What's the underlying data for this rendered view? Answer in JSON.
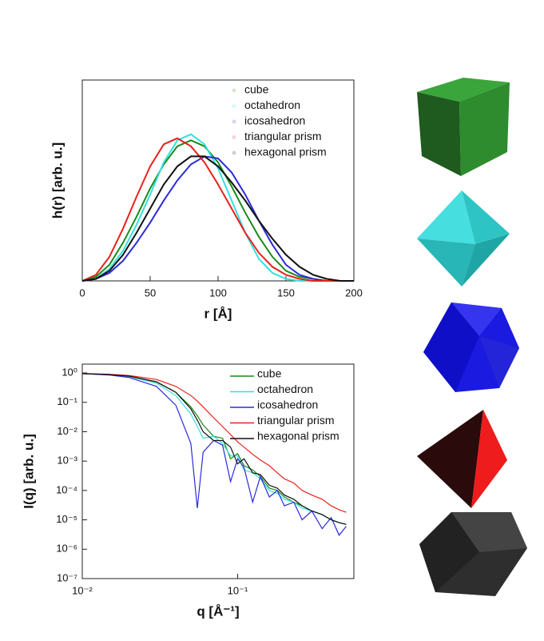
{
  "chart_data": [
    {
      "type": "line",
      "xlabel": "r [Å]",
      "ylabel": "h(r) [arb. u.]",
      "x": [
        0,
        10,
        20,
        30,
        40,
        50,
        60,
        70,
        80,
        90,
        100,
        110,
        120,
        130,
        140,
        150,
        160,
        170,
        180,
        190,
        200
      ],
      "xlim": [
        0,
        200
      ],
      "xticks": [
        0,
        50,
        100,
        150,
        200
      ],
      "ylim": [
        0,
        1
      ],
      "legend": "upper right",
      "series": [
        {
          "name": "cube",
          "color": "#1a8a1a",
          "values": [
            0,
            0.02,
            0.08,
            0.19,
            0.32,
            0.46,
            0.58,
            0.67,
            0.7,
            0.67,
            0.59,
            0.47,
            0.34,
            0.22,
            0.12,
            0.05,
            0.02,
            0.01,
            0,
            0,
            0
          ]
        },
        {
          "name": "octahedron",
          "color": "#33e0e0",
          "values": [
            0,
            0.01,
            0.06,
            0.15,
            0.28,
            0.43,
            0.59,
            0.7,
            0.73,
            0.68,
            0.56,
            0.4,
            0.24,
            0.11,
            0.04,
            0.01,
            0,
            0,
            0,
            0,
            0
          ]
        },
        {
          "name": "icosahedron",
          "color": "#2b2bd9",
          "values": [
            0,
            0.01,
            0.04,
            0.1,
            0.19,
            0.29,
            0.4,
            0.5,
            0.58,
            0.62,
            0.61,
            0.54,
            0.43,
            0.3,
            0.18,
            0.08,
            0.03,
            0.01,
            0,
            0,
            0
          ]
        },
        {
          "name": "triangular prism",
          "color": "#e8211c",
          "values": [
            0,
            0.03,
            0.12,
            0.26,
            0.42,
            0.57,
            0.68,
            0.71,
            0.67,
            0.59,
            0.48,
            0.36,
            0.24,
            0.14,
            0.07,
            0.03,
            0.01,
            0,
            0,
            0,
            0
          ]
        },
        {
          "name": "hexagonal prism",
          "color": "#111111",
          "values": [
            0,
            0.01,
            0.05,
            0.13,
            0.24,
            0.36,
            0.48,
            0.57,
            0.62,
            0.62,
            0.57,
            0.49,
            0.4,
            0.3,
            0.21,
            0.13,
            0.07,
            0.03,
            0.01,
            0,
            0
          ]
        }
      ]
    },
    {
      "type": "line",
      "xlabel": "q [Å⁻¹]",
      "ylabel": "I(q) [arb. u.]",
      "xscale": "log",
      "yscale": "log",
      "x": [
        0.01,
        0.015,
        0.02,
        0.03,
        0.04,
        0.05,
        0.055,
        0.06,
        0.07,
        0.08,
        0.09,
        0.1,
        0.11,
        0.125,
        0.14,
        0.16,
        0.18,
        0.2,
        0.23,
        0.26,
        0.3,
        0.35,
        0.4,
        0.45,
        0.5
      ],
      "xlim": [
        0.01,
        0.56
      ],
      "ylim": [
        1e-07,
        2
      ],
      "xticks": [
        {
          "value": 0.01,
          "label": "10⁻²"
        },
        {
          "value": 0.1,
          "label": "10⁻¹"
        }
      ],
      "yticks": [
        {
          "value": 1e-07,
          "label": "10⁻⁷"
        },
        {
          "value": 1e-06,
          "label": "10⁻⁶"
        },
        {
          "value": 1e-05,
          "label": "10⁻⁵"
        },
        {
          "value": 0.0001,
          "label": "10⁻⁴"
        },
        {
          "value": 0.001,
          "label": "10⁻³"
        },
        {
          "value": 0.01,
          "label": "10⁻²"
        },
        {
          "value": 0.1,
          "label": "10⁻¹"
        },
        {
          "value": 1,
          "label": "10⁰"
        }
      ],
      "legend": "upper right",
      "series": [
        {
          "name": "cube",
          "color": "#1a8a1a",
          "values": [
            0.95,
            0.88,
            0.78,
            0.5,
            0.22,
            0.07,
            0.035,
            0.017,
            0.007,
            0.006,
            0.0012,
            0.0018,
            0.0007,
            0.0005,
            0.0003,
            0.00012,
            0.0001,
            6e-05,
            4e-05,
            3e-05,
            2e-05,
            1.5e-05,
            1e-05,
            8e-06,
            7e-06
          ]
        },
        {
          "name": "octahedron",
          "color": "#33e0e0",
          "values": [
            0.95,
            0.87,
            0.75,
            0.45,
            0.17,
            0.04,
            0.015,
            0.006,
            0.007,
            0.004,
            0.0015,
            0.0015,
            0.0005,
            0.0004,
            0.00025,
            0.0001,
            8e-05,
            5e-05,
            4e-05,
            2.5e-05,
            2e-05,
            1.5e-05,
            1e-05,
            8e-06,
            7e-06
          ]
        },
        {
          "name": "icosahedron",
          "color": "#2b2bd9",
          "values": [
            0.95,
            0.85,
            0.7,
            0.35,
            0.08,
            0.004,
            2.5e-05,
            0.002,
            0.005,
            0.0035,
            0.0002,
            0.0012,
            0.0006,
            4e-05,
            0.0003,
            6e-05,
            0.0001,
            3e-05,
            4e-05,
            1e-05,
            2e-05,
            5e-06,
            1.2e-05,
            3e-06,
            6e-06
          ]
        },
        {
          "name": "triangular prism",
          "color": "#e8211c",
          "values": [
            0.96,
            0.9,
            0.82,
            0.6,
            0.35,
            0.17,
            0.11,
            0.07,
            0.03,
            0.015,
            0.008,
            0.0045,
            0.003,
            0.0017,
            0.0011,
            0.0007,
            0.0004,
            0.00025,
            0.00018,
            0.0001,
            7e-05,
            5e-05,
            3e-05,
            2.2e-05,
            1.8e-05
          ]
        },
        {
          "name": "hexagonal prism",
          "color": "#111111",
          "values": [
            0.95,
            0.88,
            0.78,
            0.5,
            0.22,
            0.06,
            0.025,
            0.01,
            0.005,
            0.005,
            0.003,
            0.0008,
            0.0012,
            0.0004,
            0.00035,
            0.00015,
            0.00012,
            7e-05,
            5e-05,
            3e-05,
            2e-05,
            1.5e-05,
            1e-05,
            8e-06,
            7e-06
          ]
        }
      ]
    }
  ]
}
